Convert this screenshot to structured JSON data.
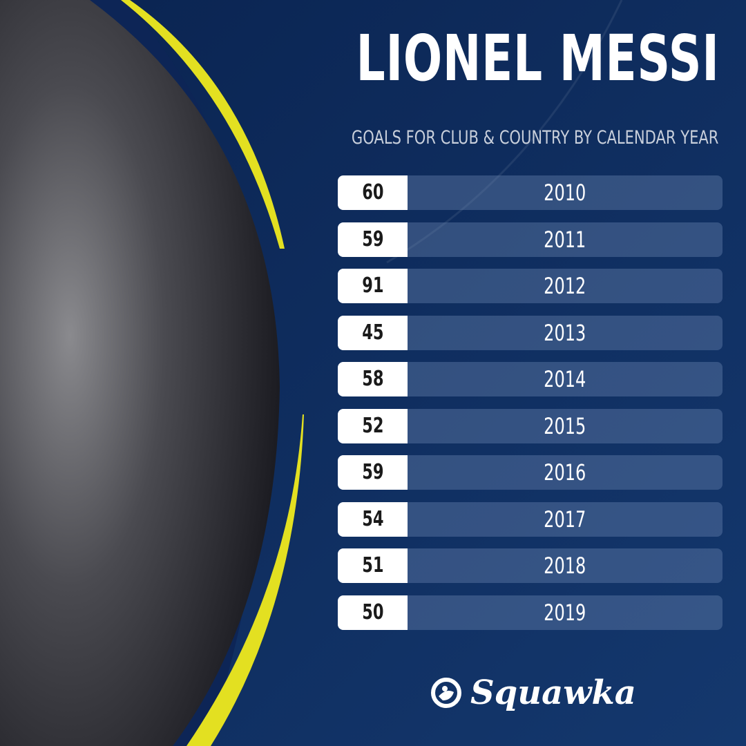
{
  "header": {
    "title": "LIONEL MESSI",
    "subtitle": "GOALS FOR CLUB & COUNTRY BY CALENDAR YEAR"
  },
  "colors": {
    "background": "#0c2a5c",
    "accent": "#e3e021",
    "value_box": "#ffffff"
  },
  "chart_data": {
    "type": "table",
    "title": "LIONEL MESSI",
    "subtitle": "GOALS FOR CLUB & COUNTRY BY CALENDAR YEAR",
    "rows": [
      {
        "goals": "60",
        "year": "2010"
      },
      {
        "goals": "59",
        "year": "2011"
      },
      {
        "goals": "91",
        "year": "2012"
      },
      {
        "goals": "45",
        "year": "2013"
      },
      {
        "goals": "58",
        "year": "2014"
      },
      {
        "goals": "52",
        "year": "2015"
      },
      {
        "goals": "59",
        "year": "2016"
      },
      {
        "goals": "54",
        "year": "2017"
      },
      {
        "goals": "51",
        "year": "2018"
      },
      {
        "goals": "50",
        "year": "2019"
      }
    ]
  },
  "logo": {
    "text": "Squawka",
    "icon": "squawka-logo-icon"
  }
}
